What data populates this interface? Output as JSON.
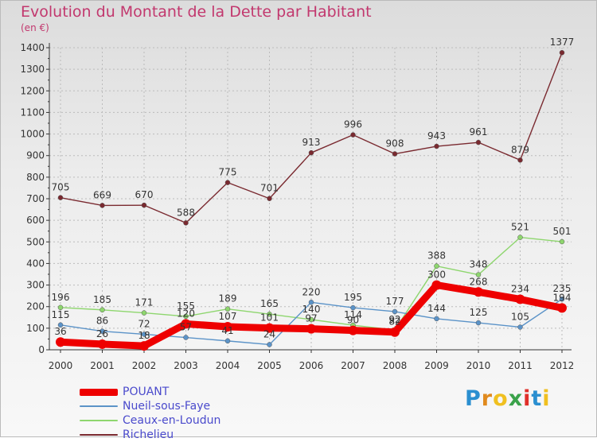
{
  "title": "Evolution du Montant de la Dette par Habitant",
  "subtitle": "(en €)",
  "brand": {
    "text": "Proxiti",
    "colors": [
      "#2a8fd0",
      "#e08a1e",
      "#f0c020",
      "#3aa24a",
      "#e0302a",
      "#2a8fd0",
      "#f0c020"
    ]
  },
  "chart_data": {
    "type": "line",
    "title": "Evolution du Montant de la Dette par Habitant",
    "ylabel": "(en €)",
    "xlabel": "",
    "ylim": [
      0,
      1400
    ],
    "yticks": [
      0,
      100,
      200,
      300,
      400,
      500,
      600,
      700,
      800,
      900,
      1000,
      1100,
      1200,
      1300,
      1400
    ],
    "grid": true,
    "legend_position": "bottom-left",
    "categories": [
      "2000",
      "2001",
      "2002",
      "2003",
      "2004",
      "2005",
      "2006",
      "2007",
      "2008",
      "2009",
      "2010",
      "2011",
      "2012"
    ],
    "series": [
      {
        "name": "Richelieu",
        "color": "#7a2a30",
        "weight": "thin",
        "values": [
          705,
          669,
          670,
          588,
          775,
          701,
          913,
          996,
          908,
          943,
          961,
          879,
          1377
        ]
      },
      {
        "name": "Ceaux-en-Loudun",
        "color": "#8ed66e",
        "weight": "thin",
        "values": [
          196,
          185,
          171,
          155,
          189,
          165,
          140,
          114,
          92,
          388,
          348,
          521,
          501
        ]
      },
      {
        "name": "Nueil-sous-Faye",
        "color": "#5b93c8",
        "weight": "thin",
        "values": [
          115,
          86,
          72,
          57,
          41,
          24,
          220,
          195,
          177,
          144,
          125,
          105,
          235
        ]
      },
      {
        "name": "POUANT",
        "color": "#ee0000",
        "weight": "thick",
        "values": [
          36,
          26,
          18,
          120,
          107,
          101,
          97,
          90,
          82,
          300,
          268,
          234,
          194
        ]
      }
    ]
  },
  "legend": [
    {
      "name": "POUANT",
      "color": "#ee0000",
      "weight": "thick"
    },
    {
      "name": "Nueil-sous-Faye",
      "color": "#5b93c8",
      "weight": "thin"
    },
    {
      "name": "Ceaux-en-Loudun",
      "color": "#8ed66e",
      "weight": "thin"
    },
    {
      "name": "Richelieu",
      "color": "#7a2a30",
      "weight": "thin"
    }
  ]
}
